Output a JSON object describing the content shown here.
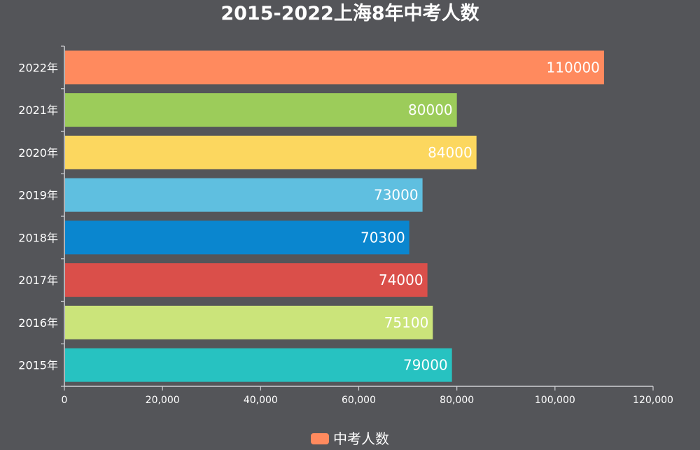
{
  "chart_data": {
    "type": "bar",
    "orientation": "horizontal",
    "title": "2015-2022上海8年中考人数",
    "categories": [
      "2022年",
      "2021年",
      "2020年",
      "2019年",
      "2018年",
      "2017年",
      "2016年",
      "2015年"
    ],
    "series": [
      {
        "name": "中考人数",
        "values": [
          110000,
          80000,
          84000,
          73000,
          70300,
          74000,
          75100,
          79000
        ],
        "colors": [
          "#ff8a5e",
          "#9ccc5a",
          "#fcd75f",
          "#5fbfe0",
          "#0a86cf",
          "#da4f4a",
          "#cbe47a",
          "#27c2c1"
        ]
      }
    ],
    "data_labels": [
      "110000",
      "80000",
      "84000",
      "73000",
      "70300",
      "74000",
      "75100",
      "79000"
    ],
    "xlim": [
      0,
      120000
    ],
    "x_ticks": [
      0,
      20000,
      40000,
      60000,
      80000,
      100000,
      120000
    ],
    "x_tick_labels": [
      "0",
      "20,000",
      "40,000",
      "60,000",
      "80,000",
      "100,000",
      "120,000"
    ],
    "grid": false,
    "legend_position": "bottom-center",
    "legend_color": "#ff8a5e",
    "background_color": "#545559",
    "axis_color": "#cfd0d4"
  }
}
